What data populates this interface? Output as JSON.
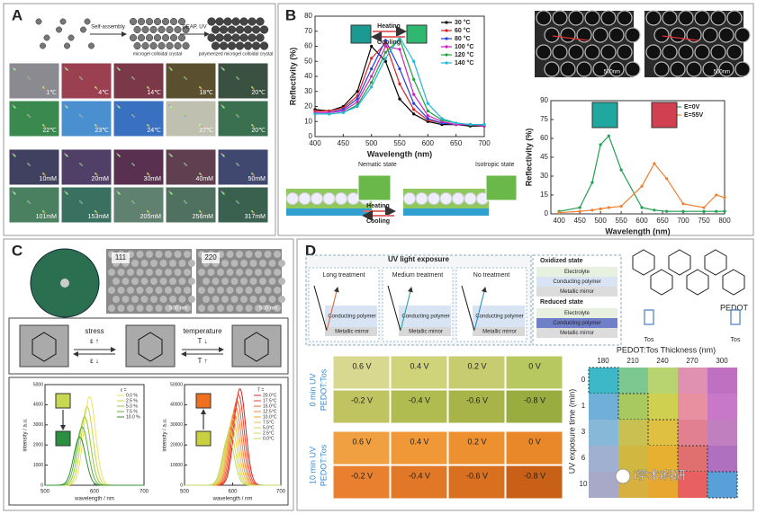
{
  "A": {
    "label": "A",
    "steps": [
      "Self-assembly",
      "DEAP, UV"
    ],
    "captions": [
      "microgel colloidal crystal",
      "polymerized microgel colloidal crystal"
    ],
    "temps": [
      "1℃",
      "4℃",
      "14℃",
      "18℃",
      "20℃",
      "22℃",
      "23℃",
      "24℃",
      "27℃",
      "20℃"
    ],
    "concs": [
      "10mM",
      "20mM",
      "30mM",
      "40mM",
      "50mM",
      "101mM",
      "153mM",
      "205mM",
      "256mM",
      "317mM"
    ]
  },
  "B": {
    "label": "B",
    "reflect": {
      "type": "line",
      "xlabel": "Wavelength (nm)",
      "ylabel": "Reflectivity (%)",
      "x": [
        400,
        425,
        450,
        475,
        500,
        525,
        550,
        575,
        600,
        625,
        650,
        675,
        700
      ],
      "xlim": [
        400,
        700
      ],
      "xticks": [
        400,
        450,
        500,
        550,
        600,
        650,
        700
      ],
      "ylim": [
        0,
        80
      ],
      "yticks": [
        0,
        10,
        20,
        30,
        40,
        50,
        60,
        70,
        80
      ],
      "legend": "upper right",
      "series": [
        {
          "name": "30 °C",
          "color": "#000000",
          "values": [
            18,
            17,
            20,
            30,
            60,
            50,
            25,
            15,
            10,
            8,
            8,
            7,
            7
          ]
        },
        {
          "name": "60 °C",
          "color": "#e02020",
          "values": [
            17,
            17,
            19,
            27,
            52,
            62,
            35,
            18,
            11,
            9,
            8,
            8,
            7
          ]
        },
        {
          "name": "80 °C",
          "color": "#2040e0",
          "values": [
            16,
            16,
            18,
            25,
            45,
            64,
            45,
            22,
            12,
            9,
            8,
            8,
            7
          ]
        },
        {
          "name": "100 °C",
          "color": "#d020c0",
          "values": [
            16,
            16,
            17,
            23,
            40,
            60,
            58,
            28,
            14,
            10,
            8,
            8,
            7
          ]
        },
        {
          "name": "120 °C",
          "color": "#20a040",
          "values": [
            15,
            15,
            16,
            21,
            36,
            56,
            65,
            38,
            17,
            11,
            9,
            8,
            8
          ]
        },
        {
          "name": "140 °C",
          "color": "#20b8d8",
          "values": [
            15,
            15,
            16,
            20,
            33,
            52,
            66,
            50,
            22,
            12,
            9,
            8,
            8
          ]
        }
      ],
      "arrows": [
        "Heating",
        "Cooling"
      ]
    },
    "states": [
      "Nematic state",
      "Isotropic state"
    ],
    "arrows": [
      "Heating",
      "Cooling"
    ],
    "sem_scale": [
      "500nm",
      "500nm"
    ],
    "field": {
      "type": "line",
      "xlabel": "Wavelength (nm)",
      "ylabel": "Reflectivity (%)",
      "x": [
        400,
        450,
        480,
        500,
        520,
        550,
        600,
        630,
        660,
        700,
        750,
        780,
        800
      ],
      "xlim": [
        380,
        800
      ],
      "xticks": [
        400,
        450,
        500,
        550,
        600,
        650,
        700,
        750,
        800
      ],
      "ylim": [
        0,
        90
      ],
      "yticks": [
        0,
        15,
        30,
        45,
        60,
        75,
        90
      ],
      "legend": "upper right",
      "series": [
        {
          "name": "E=0V",
          "color": "#20a050",
          "values": [
            2,
            5,
            25,
            55,
            62,
            35,
            5,
            3,
            2,
            2,
            2,
            2,
            2
          ]
        },
        {
          "name": "E=55V",
          "color": "#f08030",
          "values": [
            1,
            2,
            3,
            4,
            5,
            6,
            22,
            40,
            28,
            8,
            5,
            15,
            13
          ]
        }
      ]
    }
  },
  "C": {
    "label": "C",
    "facets": [
      "111",
      "220"
    ],
    "scale": [
      "500 nm",
      "500 nm"
    ],
    "stress": {
      "title": "stress",
      "up": "ε ↑",
      "down": "ε ↓"
    },
    "temperature": {
      "title": "temperature",
      "up": "T ↓",
      "down": "T ↑"
    },
    "strain_spectra": {
      "type": "spectra",
      "xlabel": "wavelength / nm",
      "ylabel": "intensity / a.u.",
      "xlim": [
        500,
        700
      ],
      "xticks": [
        500,
        600,
        700
      ],
      "ylim": [
        0,
        5000
      ],
      "yticks": [
        0,
        1000,
        2000,
        3000,
        4000,
        5000
      ],
      "legend_title": "ε =",
      "series": [
        {
          "name": "0.0 %",
          "color": "#f0e060",
          "peak": 590,
          "height": 4400
        },
        {
          "name": "2.5 %",
          "color": "#c8d840",
          "peak": 585,
          "height": 3900
        },
        {
          "name": "5.0 %",
          "color": "#90c840",
          "peak": 580,
          "height": 3400
        },
        {
          "name": "7.5 %",
          "color": "#60b040",
          "peak": 575,
          "height": 2900
        },
        {
          "name": "10.0 %",
          "color": "#309038",
          "peak": 570,
          "height": 2400
        }
      ]
    },
    "temp_spectra": {
      "type": "spectra",
      "xlabel": "wavelength / nm",
      "ylabel": "intensity / a.u.",
      "xlim": [
        500,
        700
      ],
      "xticks": [
        500,
        600,
        700
      ],
      "ylim": [
        0,
        50000
      ],
      "yticks": [
        0,
        10000,
        20000,
        30000,
        40000,
        50000
      ],
      "legend_title": "T =",
      "series": [
        {
          "name": "20.0°C",
          "color": "#e02020",
          "peak": 615,
          "height": 48000
        },
        {
          "name": "17.5°C",
          "color": "#e84030",
          "peak": 612,
          "height": 45000
        },
        {
          "name": "15.0°C",
          "color": "#ee6030",
          "peak": 609,
          "height": 42000
        },
        {
          "name": "12.5°C",
          "color": "#f08038",
          "peak": 606,
          "height": 39000
        },
        {
          "name": "10.0°C",
          "color": "#f0a040",
          "peak": 603,
          "height": 36000
        },
        {
          "name": "7.5°C",
          "color": "#e8c048",
          "peak": 600,
          "height": 33000
        },
        {
          "name": "5.0°C",
          "color": "#e0d050",
          "peak": 597,
          "height": 30000
        },
        {
          "name": "2.5°C",
          "color": "#d0d858",
          "peak": 594,
          "height": 27000
        },
        {
          "name": "0.0°C",
          "color": "#c0d860",
          "peak": 591,
          "height": 24000
        }
      ]
    }
  },
  "D": {
    "label": "D",
    "uv_title": "UV light exposure",
    "treatments": [
      {
        "title": "Long treatment",
        "polymer": "Conducting polymer",
        "mirror": "Metallic mirror"
      },
      {
        "title": "Medium treatment",
        "polymer": "Conducting polymer",
        "mirror": "Metallic mirror"
      },
      {
        "title": "No treatment",
        "polymer": "Conducting polymer",
        "mirror": "Metallic mirror"
      }
    ],
    "oxidized": {
      "title": "Oxidized state",
      "layers": [
        "Electrolyte",
        "Conducting polymer",
        "Metallic mirror"
      ]
    },
    "reduced": {
      "title": "Reduced state",
      "layers": [
        "Electrolyte",
        "Conducting polymer",
        "Metallic mirror"
      ]
    },
    "molecule": {
      "name": "PEDOT",
      "counter": [
        "Tos",
        "Tos"
      ]
    },
    "uv0": {
      "label": [
        "0 min UV",
        "PEDOT:Tos"
      ],
      "top": [
        "0.6 V",
        "0.4 V",
        "0.2 V",
        "0 V"
      ],
      "bottom": [
        "-0.2 V",
        "-0.4 V",
        "-0.6 V",
        "-0.8 V"
      ],
      "colors": [
        [
          "#d8d890",
          "#cfd47a",
          "#c8cc70",
          "#b8c860"
        ],
        [
          "#c0c460",
          "#b0bc50",
          "#a8b448",
          "#98ac40"
        ]
      ]
    },
    "uv10": {
      "label": [
        "10 min UV",
        "PEDOT:Tos"
      ],
      "top": [
        "0.6 V",
        "0.4 V",
        "0.2 V",
        "0 V"
      ],
      "bottom": [
        "-0.2 V",
        "-0.4 V",
        "-0.6 V",
        "-0.8 V"
      ],
      "colors": [
        [
          "#f0a040",
          "#f09838",
          "#ec9030",
          "#e88828"
        ],
        [
          "#e88030",
          "#e07828",
          "#d87020",
          "#c86018"
        ]
      ]
    },
    "grid": {
      "title": "PEDOT:Tos Thickness (nm)",
      "ylabel": "UV exposure time (min)",
      "columns": [
        "180",
        "210",
        "240",
        "270",
        "300"
      ],
      "rows": [
        "0",
        "1",
        "3",
        "6",
        "10"
      ],
      "colors": [
        [
          "#3cb8c8",
          "#7cc890",
          "#b8d470",
          "#e090b0",
          "#c070c0"
        ],
        [
          "#70b0d8",
          "#a8c860",
          "#d0d050",
          "#e890a0",
          "#c878c8"
        ],
        [
          "#88b8d8",
          "#c8c050",
          "#e0c040",
          "#e08090",
          "#c080c0"
        ],
        [
          "#a0b0d0",
          "#d0b840",
          "#e8b030",
          "#e07070",
          "#b070c0"
        ],
        [
          "#a8a8c8",
          "#d8b040",
          "#e8a830",
          "#e86060",
          "#5aa0d8"
        ]
      ]
    }
  },
  "watermark": "i学术i科研"
}
